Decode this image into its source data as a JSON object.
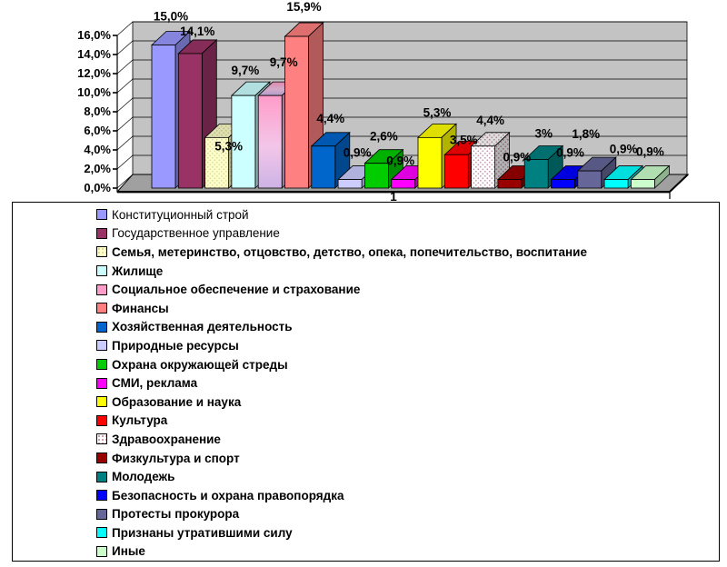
{
  "chart_data": {
    "type": "bar",
    "style": "3d-column",
    "title": "",
    "category_axis_label": "1",
    "xlabel": "",
    "ylabel": "",
    "ylim": [
      0,
      16
    ],
    "y_tick_labels": [
      "0,0%",
      "2,0%",
      "4,0%",
      "6,0%",
      "8,0%",
      "10,0%",
      "12,0%",
      "14,0%",
      "16,0%"
    ],
    "grid": true,
    "legend_position": "bottom",
    "wall_color": "#C3C3C3",
    "floor_color": "#A0A0A0",
    "series": [
      {
        "name": "Конституционный строй",
        "value": 15.0,
        "label": "15,0%",
        "color": "#9999FF",
        "texture": "solid"
      },
      {
        "name": "Государственное управление",
        "value": 14.1,
        "label": "14,1%",
        "color": "#993366",
        "texture": "solid"
      },
      {
        "name": "Семья,  метеринство,  отцовство,  детство,  опека,  попечительство,  воспитание",
        "value": 5.3,
        "label": "5,3%",
        "color": "#FFFFCC",
        "texture": "dots",
        "dot_color": "#DCDC9C"
      },
      {
        "name": "Жилище",
        "value": 9.7,
        "label": "9,7%",
        "color": "#CCFFFF",
        "texture": "solid"
      },
      {
        "name": "Социальное обеспечение и страхование",
        "value": 9.7,
        "label": "9,7%",
        "color": "#FF9CC8",
        "texture": "gradient",
        "gradient_to": "#CDB3E6"
      },
      {
        "name": "Финансы",
        "value": 15.9,
        "label": "15,9%",
        "color": "#FF8080",
        "texture": "solid"
      },
      {
        "name": "Хозяйственная деятельность",
        "value": 4.4,
        "label": "4,4%",
        "color": "#0066CC",
        "texture": "solid"
      },
      {
        "name": "Природные ресурсы",
        "value": 0.9,
        "label": "0,9%",
        "color": "#CCCCFF",
        "texture": "solid"
      },
      {
        "name": "Охрана окружающей стреды",
        "value": 2.6,
        "label": "2,6%",
        "color": "#00CC00",
        "texture": "solid"
      },
      {
        "name": "СМИ, реклама",
        "value": 0.9,
        "label": "0,9%",
        "color": "#FF00FF",
        "texture": "solid"
      },
      {
        "name": "Образование и наука",
        "value": 5.3,
        "label": "5,3%",
        "color": "#FFFF00",
        "texture": "solid"
      },
      {
        "name": "Культура",
        "value": 3.5,
        "label": "3,5%",
        "color": "#FF0000",
        "texture": "solid"
      },
      {
        "name": "Здравоохранение",
        "value": 4.4,
        "label": "4,4%",
        "color": "#FFFFFF",
        "texture": "dots",
        "dot_color": "#C698AE"
      },
      {
        "name": "Физкультура и спорт",
        "value": 0.9,
        "label": "0,9%",
        "color": "#990000",
        "texture": "solid"
      },
      {
        "name": "Молодежь",
        "value": 3.0,
        "label": "3%",
        "color": "#008080",
        "texture": "solid"
      },
      {
        "name": "Безопасность и охрана правопорядка",
        "value": 0.9,
        "label": "0,9%",
        "color": "#0000FF",
        "texture": "solid"
      },
      {
        "name": "Протесты прокурора",
        "value": 1.8,
        "label": "1,8%",
        "color": "#666699",
        "texture": "solid"
      },
      {
        "name": "Признаны утратившими силу",
        "value": 0.9,
        "label": "0,9%",
        "color": "#00FFFF",
        "texture": "solid"
      },
      {
        "name": "Иные",
        "value": 0.9,
        "label": "0,9%",
        "color": "#CCFFCC",
        "texture": "solid"
      }
    ]
  }
}
